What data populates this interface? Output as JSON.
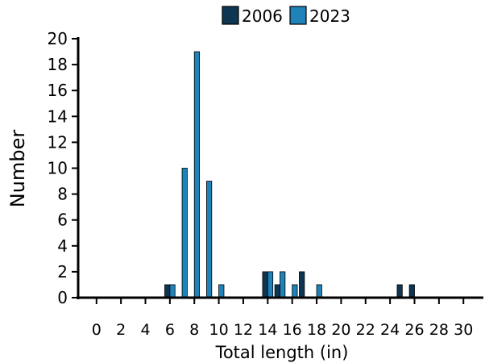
{
  "chart_data": {
    "type": "bar",
    "title": "",
    "xlabel": "Total length (in)",
    "ylabel": "Number",
    "xlim": [
      -1.5,
      31.5
    ],
    "ylim": [
      0,
      20
    ],
    "x_ticks": [
      0,
      2,
      4,
      6,
      8,
      10,
      12,
      14,
      16,
      18,
      20,
      22,
      24,
      26,
      28,
      30
    ],
    "y_ticks": [
      0,
      2,
      4,
      6,
      8,
      10,
      12,
      14,
      16,
      18,
      20
    ],
    "x": [
      6,
      7,
      8,
      9,
      10,
      14,
      15,
      16,
      17,
      18,
      25,
      26
    ],
    "series": [
      {
        "name": "2006",
        "color": "#0e3652",
        "values": [
          1,
          0,
          0,
          0,
          0,
          2,
          1,
          0,
          2,
          0,
          1,
          1
        ]
      },
      {
        "name": "2023",
        "color": "#1f83b9",
        "values": [
          1,
          10,
          19,
          9,
          1,
          2,
          2,
          1,
          0,
          1,
          0,
          0
        ]
      }
    ],
    "legend_position": "top",
    "grid": false
  }
}
